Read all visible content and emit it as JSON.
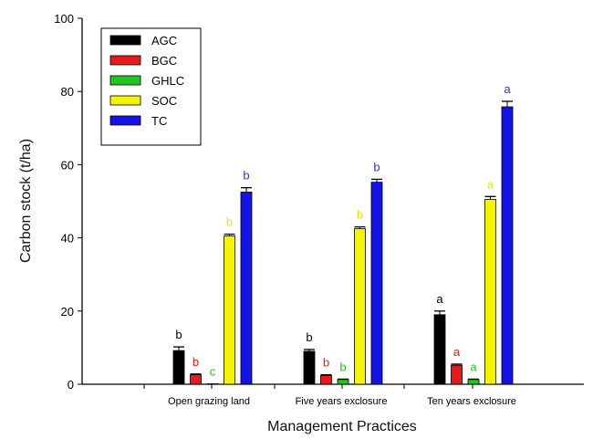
{
  "chart_data": {
    "type": "bar",
    "xlabel": "Management Practices",
    "ylabel": "Carbon stock (t/ha)",
    "ylim": [
      0,
      100
    ],
    "yticks": [
      0,
      20,
      40,
      60,
      80,
      100
    ],
    "categories": [
      "Open grazing land",
      "Five years exclosure",
      "Ten years exclosure"
    ],
    "legend_position": "top-left",
    "series": [
      {
        "name": "AGC",
        "color": "#000000",
        "values": [
          9.2,
          9.0,
          19.0
        ],
        "errors": [
          1.0,
          0.5,
          1.0
        ],
        "letters": [
          "b",
          "b",
          "a"
        ]
      },
      {
        "name": "BGC",
        "color": "#e8191b",
        "values": [
          2.6,
          2.4,
          5.2
        ],
        "errors": [
          0.2,
          0.2,
          0.3
        ],
        "letters": [
          "b",
          "b",
          "a"
        ]
      },
      {
        "name": "GHLC",
        "color": "#22c522",
        "values": [
          0.1,
          1.3,
          1.3
        ],
        "errors": [
          0.0,
          0.1,
          0.1
        ],
        "letters": [
          "c",
          "b",
          "a"
        ]
      },
      {
        "name": "SOC",
        "color": "#f4f400",
        "values": [
          40.5,
          42.5,
          50.5
        ],
        "errors": [
          0.5,
          0.5,
          0.8
        ],
        "letters": [
          "b",
          "b",
          "a"
        ]
      },
      {
        "name": "TC",
        "color": "#1313e6",
        "values": [
          52.5,
          55.2,
          75.8
        ],
        "errors": [
          1.2,
          0.8,
          1.5
        ],
        "letters": [
          "b",
          "b",
          "a"
        ]
      }
    ],
    "letter_colors": [
      "#000000",
      "#e8191b",
      "#22c522",
      "#e8e500",
      "#2f33d8"
    ]
  }
}
